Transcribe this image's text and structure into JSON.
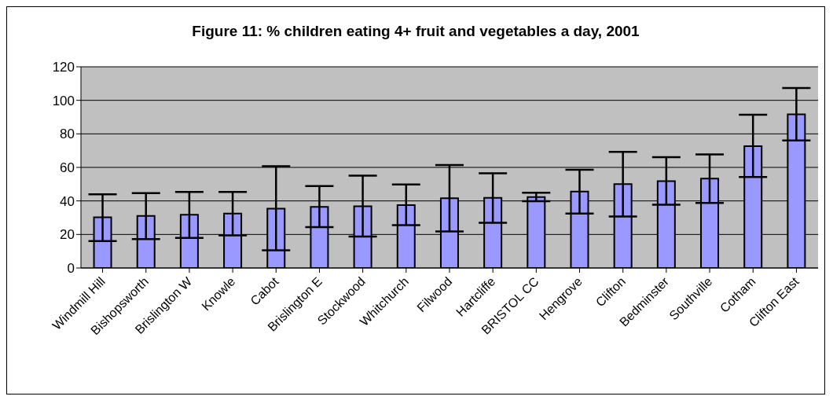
{
  "chart_data": {
    "type": "bar",
    "title": "Figure 11: % children eating 4+ fruit and vegetables a day, 2001",
    "categories": [
      "Windmill Hill",
      "Bishopsworth",
      "Brislington W",
      "Knowle",
      "Cabot",
      "Brislington E",
      "Stockwood",
      "Whitchurch",
      "Filwood",
      "Hartcliffe",
      "BRISTOL CC",
      "Hengrove",
      "Clifton",
      "Bedminster",
      "Southville",
      "Cotham",
      "Clifton East"
    ],
    "values": [
      30.2,
      31,
      31.8,
      32.5,
      35.4,
      36.5,
      36.8,
      37.5,
      41.6,
      41.8,
      42.3,
      45.6,
      50,
      51.8,
      53.3,
      72.6,
      91.6
    ],
    "errors": [
      [
        16.1,
        43.9
      ],
      [
        17.2,
        44.6
      ],
      [
        17.9,
        45.4
      ],
      [
        19.5,
        45.4
      ],
      [
        10.5,
        60.7
      ],
      [
        24.4,
        48.9
      ],
      [
        18.8,
        55.1
      ],
      [
        25.6,
        49.8
      ],
      [
        21.8,
        61.4
      ],
      [
        27,
        56.5
      ],
      [
        39.8,
        44.9
      ],
      [
        32.5,
        58.6
      ],
      [
        30.7,
        69.3
      ],
      [
        37.7,
        66.1
      ],
      [
        38.8,
        67.7
      ],
      [
        54.2,
        91.4
      ],
      [
        76.1,
        107.4
      ]
    ],
    "color": "#9999ff",
    "ylim": [
      0,
      120
    ],
    "yticks": [
      0,
      20,
      40,
      60,
      80,
      100,
      120
    ],
    "grid": "y"
  }
}
